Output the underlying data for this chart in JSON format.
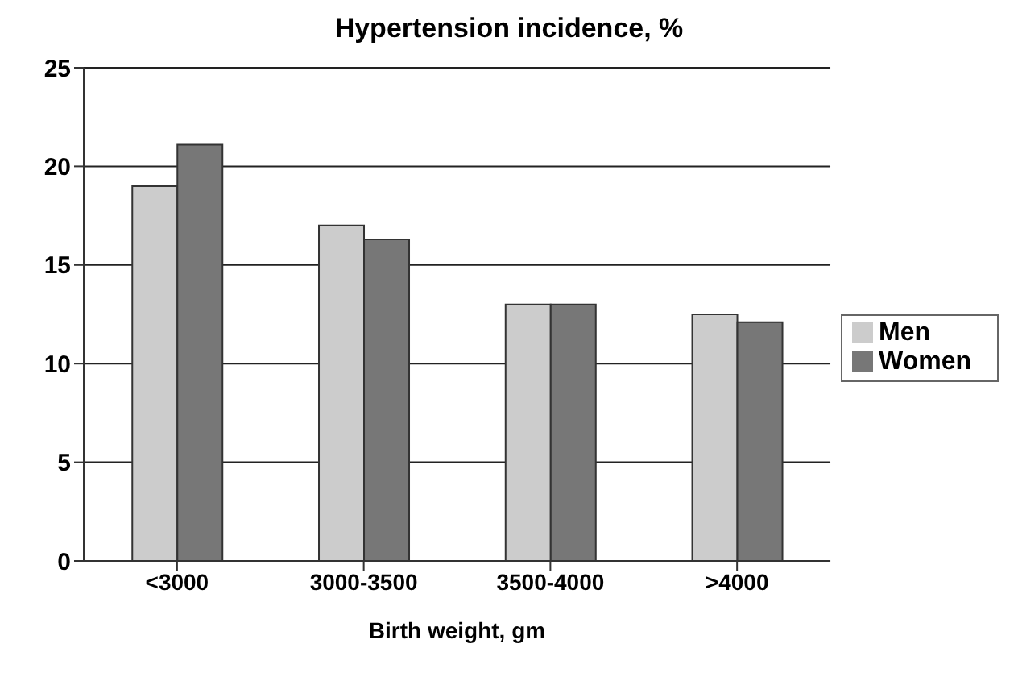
{
  "chart_data": {
    "type": "bar",
    "title": "Hypertension incidence, %",
    "xlabel": "Birth weight, gm",
    "categories": [
      "<3000",
      "3000-3500",
      "3500-4000",
      ">4000"
    ],
    "series": [
      {
        "name": "Men",
        "color": "#cccccc",
        "values": [
          19.0,
          17.0,
          13.0,
          12.5
        ]
      },
      {
        "name": "Women",
        "color": "#777777",
        "values": [
          21.1,
          16.3,
          13.0,
          12.1
        ]
      }
    ],
    "ylim": [
      0,
      25
    ],
    "yticks": [
      0,
      5,
      10,
      15,
      20,
      25
    ],
    "grid": "y",
    "legend": "right"
  }
}
